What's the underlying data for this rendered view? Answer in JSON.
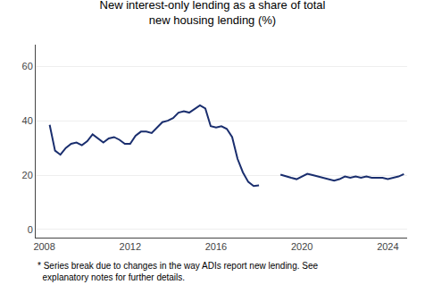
{
  "chart_data": {
    "type": "line",
    "title": "New interest-only lending as a share of total\nnew housing lending (%)",
    "annotations": [
      "* Series break due to changes in the way ADIs report new lending. See\n  explanatory notes for further details."
    ],
    "series": [
      {
        "color": "#1a2e6e",
        "x": [
          2008.25,
          2008.5,
          2008.75,
          2009.0,
          2009.25,
          2009.5,
          2009.75,
          2010.0,
          2010.25,
          2010.5,
          2010.75,
          2011.0,
          2011.25,
          2011.5,
          2011.75,
          2012.0,
          2012.25,
          2012.5,
          2012.75,
          2013.0,
          2013.25,
          2013.5,
          2013.75,
          2014.0,
          2014.25,
          2014.5,
          2014.75,
          2015.0,
          2015.25,
          2015.5,
          2015.75,
          2016.0,
          2016.25,
          2016.5,
          2016.75,
          2017.0,
          2017.25,
          2017.5,
          2017.75,
          2018.0
        ],
        "values": [
          38.5,
          29.0,
          27.5,
          30.0,
          31.5,
          32.0,
          31.0,
          32.5,
          35.0,
          33.5,
          32.0,
          33.5,
          34.0,
          33.0,
          31.5,
          31.5,
          34.5,
          36.0,
          36.0,
          35.5,
          37.5,
          39.5,
          40.0,
          41.0,
          43.0,
          43.5,
          43.0,
          44.5,
          45.7,
          44.5,
          38.0,
          37.5,
          38.0,
          37.0,
          34.0,
          26.0,
          21.0,
          17.5,
          16.0,
          16.2
        ]
      },
      {
        "color": "#1a2e6e",
        "x": [
          2019.0,
          2019.25,
          2019.5,
          2019.75,
          2020.0,
          2020.25,
          2020.5,
          2020.75,
          2021.0,
          2021.25,
          2021.5,
          2021.75,
          2022.0,
          2022.25,
          2022.5,
          2022.75,
          2023.0,
          2023.25,
          2023.5,
          2023.75,
          2024.0,
          2024.25,
          2024.5,
          2024.75
        ],
        "values": [
          20.2,
          19.5,
          19.0,
          18.5,
          19.5,
          20.5,
          20.0,
          19.5,
          19.0,
          18.5,
          18.0,
          18.5,
          19.5,
          19.0,
          19.5,
          19.0,
          19.5,
          19.0,
          19.0,
          19.0,
          18.5,
          19.0,
          19.5,
          20.4
        ]
      }
    ],
    "xlim": [
      2007.6,
      2024.9
    ],
    "xticks": [
      2008,
      2012,
      2016,
      2020,
      2024
    ],
    "ylim": [
      -3,
      68
    ],
    "yticks": [
      0,
      20,
      40,
      60
    ],
    "grid": true
  }
}
